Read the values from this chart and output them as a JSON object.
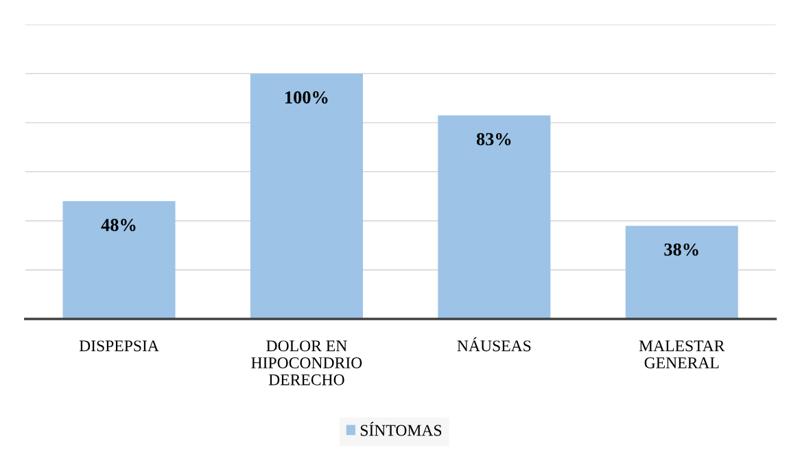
{
  "chart_data": {
    "type": "bar",
    "categories": [
      "DISPEPSIA",
      "DOLOR EN\nHIPOCONDRIO\nDERECHO",
      "NÁUSEAS",
      "MALESTAR\nGENERAL"
    ],
    "series": [
      {
        "name": "SÍNTOMAS",
        "color": "#9dc3e6",
        "values": [
          48,
          100,
          83,
          38
        ],
        "value_labels": [
          "48%",
          "100%",
          "83%",
          "38%"
        ]
      }
    ],
    "ylim": [
      0,
      120
    ],
    "yticks": [
      {
        "value": 0,
        "label": null
      },
      {
        "value": 20,
        "label": null
      },
      {
        "value": 40,
        "label": null
      },
      {
        "value": 60,
        "label": null
      },
      {
        "value": 80,
        "label": null
      },
      {
        "value": 100,
        "label": null
      },
      {
        "value": 120,
        "label": null
      }
    ],
    "tick_labels": "x",
    "grid": "y",
    "legend": "bottom"
  }
}
